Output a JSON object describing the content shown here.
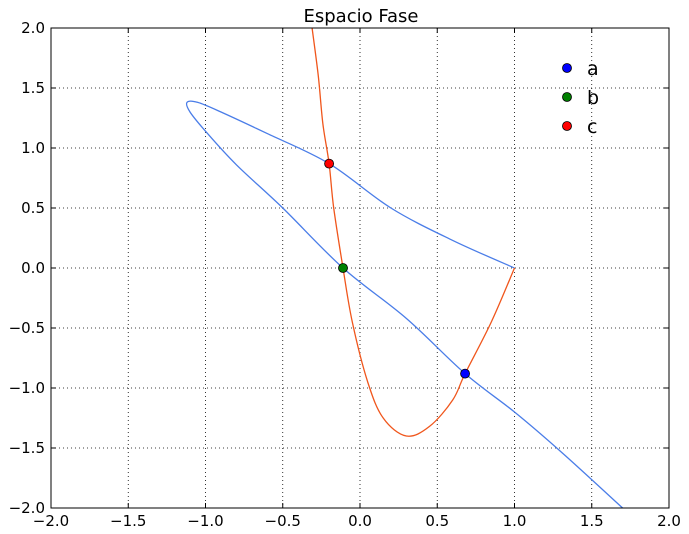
{
  "chart_data": {
    "type": "line",
    "title": "Espacio Fase",
    "xlabel": "",
    "ylabel": "",
    "xlim": [
      -2.0,
      2.0
    ],
    "ylim": [
      -2.0,
      2.0
    ],
    "xticks": [
      "−2.0",
      "−1.5",
      "−1.0",
      "−0.5",
      "0.0",
      "0.5",
      "1.0",
      "1.5",
      "2.0"
    ],
    "yticks": [
      "2.0",
      "1.5",
      "1.0",
      "0.5",
      "0.0",
      "−0.5",
      "−1.0",
      "−1.5",
      "−2.0"
    ],
    "grid": true,
    "legend_position": "top-right",
    "colors": {
      "blue_curve": "#4a7de8",
      "orange_curve": "#f0561c",
      "a": "#0000ff",
      "b": "#008000",
      "c": "#ff0000"
    },
    "curves": [
      {
        "color_key": "blue_curve",
        "points": [
          [
            1.0,
            0.0
          ],
          [
            0.6,
            0.23
          ],
          [
            0.2,
            0.5
          ],
          [
            -0.2,
            0.87
          ],
          [
            -0.6,
            1.12
          ],
          [
            -0.9,
            1.3
          ],
          [
            -1.05,
            1.38
          ],
          [
            -1.12,
            1.38
          ],
          [
            -1.1,
            1.3
          ],
          [
            -1.0,
            1.14
          ],
          [
            -0.8,
            0.86
          ],
          [
            -0.5,
            0.5
          ],
          [
            -0.11,
            0.0
          ],
          [
            0.3,
            -0.42
          ],
          [
            0.68,
            -0.88
          ],
          [
            1.0,
            -1.2
          ],
          [
            1.3,
            -1.53
          ],
          [
            1.7,
            -2.0
          ]
        ]
      },
      {
        "color_key": "orange_curve",
        "points": [
          [
            -0.31,
            2.0
          ],
          [
            -0.27,
            1.6
          ],
          [
            -0.24,
            1.2
          ],
          [
            -0.2,
            0.87
          ],
          [
            -0.17,
            0.5
          ],
          [
            -0.11,
            0.0
          ],
          [
            -0.05,
            -0.45
          ],
          [
            0.05,
            -0.95
          ],
          [
            0.15,
            -1.25
          ],
          [
            0.3,
            -1.4
          ],
          [
            0.45,
            -1.32
          ],
          [
            0.6,
            -1.1
          ],
          [
            0.68,
            -0.88
          ],
          [
            0.85,
            -0.45
          ],
          [
            1.0,
            0.0
          ]
        ]
      }
    ],
    "legend": [
      {
        "label": "a",
        "color_key": "a"
      },
      {
        "label": "b",
        "color_key": "b"
      },
      {
        "label": "c",
        "color_key": "c"
      }
    ],
    "markers": [
      {
        "x": 0.68,
        "y": -0.88,
        "color_key": "a"
      },
      {
        "x": -0.11,
        "y": 0.0,
        "color_key": "b"
      },
      {
        "x": -0.2,
        "y": 0.87,
        "color_key": "c"
      }
    ]
  }
}
